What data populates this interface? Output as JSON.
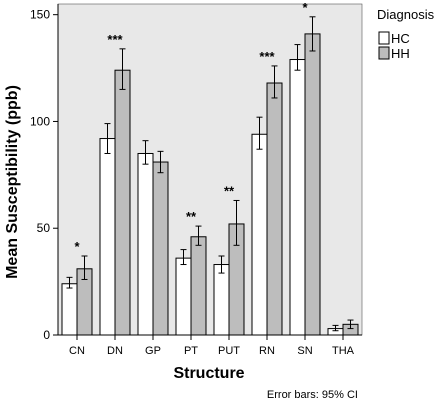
{
  "chart_data": {
    "type": "bar",
    "title": "",
    "xlabel": "Structure",
    "ylabel": "Mean Susceptibility (ppb)",
    "ylim": [
      0,
      155
    ],
    "yticks": [
      "0",
      "50",
      "100",
      "150"
    ],
    "grid": false,
    "legend": {
      "title": "Diagnosis",
      "placement": "right, outside plot"
    },
    "categories": [
      "CN",
      "DN",
      "GP",
      "PT",
      "PUT",
      "RN",
      "SN",
      "THA"
    ],
    "series": [
      {
        "name": "HC",
        "color": "#ffffff",
        "values": [
          24,
          92,
          85,
          36,
          33,
          94,
          129,
          3
        ],
        "ci_low": [
          22,
          85,
          80,
          33,
          29,
          87,
          124,
          2
        ],
        "ci_high": [
          27,
          99,
          91,
          40,
          37,
          102,
          136,
          4.5
        ]
      },
      {
        "name": "HH",
        "color": "#bdbdbd",
        "values": [
          31,
          124,
          81,
          46,
          52,
          118,
          141,
          5
        ],
        "ci_low": [
          26,
          115,
          76,
          42,
          42,
          111,
          133,
          3
        ],
        "ci_high": [
          37,
          134,
          86,
          51,
          63,
          126,
          149,
          7
        ]
      }
    ],
    "significance": [
      "*",
      "***",
      "",
      "**",
      "**",
      "***",
      "*",
      ""
    ],
    "footnote": "Error bars: 95% CI"
  },
  "colors": {
    "plot_background": "#e8e8e8",
    "bar_outline": "#000000"
  }
}
